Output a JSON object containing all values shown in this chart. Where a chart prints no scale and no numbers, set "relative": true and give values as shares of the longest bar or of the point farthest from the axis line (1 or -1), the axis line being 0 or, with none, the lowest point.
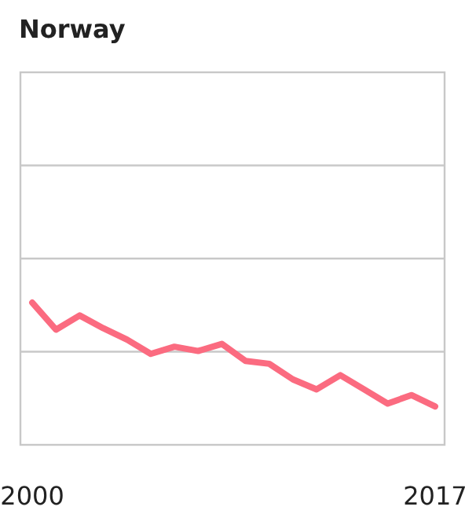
{
  "chart_data": {
    "type": "line",
    "title": "Norway",
    "relative": true,
    "x": [
      2000,
      2001,
      2002,
      2003,
      2004,
      2005,
      2006,
      2007,
      2008,
      2009,
      2010,
      2011,
      2012,
      2013,
      2014,
      2015,
      2016,
      2017
    ],
    "xlim": [
      1999.5,
      2017.4
    ],
    "xticks": [
      2000,
      2017
    ],
    "ref_lines": [
      {
        "axis": "y",
        "value": 0.655,
        "color": "#c8c8c8"
      },
      {
        "axis": "y",
        "value": 1.31,
        "color": "#c8c8c8"
      },
      {
        "axis": "y",
        "value": 1.965,
        "color": "#c8c8c8"
      }
    ],
    "series": [
      {
        "color": "#fb6b80",
        "values": [
          1,
          0.81,
          0.91,
          0.82,
          0.74,
          0.64,
          0.69,
          0.66,
          0.71,
          0.59,
          0.57,
          0.46,
          0.39,
          0.49,
          0.39,
          0.29,
          0.35,
          0.27
        ]
      }
    ]
  }
}
